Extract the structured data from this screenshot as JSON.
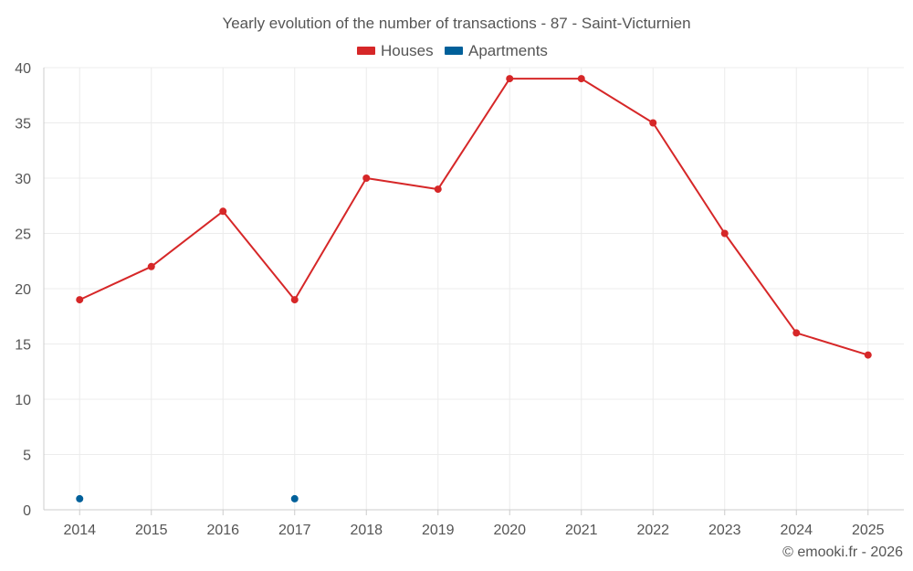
{
  "chart_data": {
    "type": "line",
    "title": "Yearly evolution of the number of transactions - 87 - Saint-Victurnien",
    "categories": [
      "2014",
      "2015",
      "2016",
      "2017",
      "2018",
      "2019",
      "2020",
      "2021",
      "2022",
      "2023",
      "2024",
      "2025"
    ],
    "series": [
      {
        "name": "Houses",
        "color": "#d62728",
        "values": [
          19,
          22,
          27,
          19,
          30,
          29,
          39,
          39,
          35,
          25,
          16,
          14
        ]
      },
      {
        "name": "Apartments",
        "color": "#00609a",
        "values": [
          1,
          null,
          null,
          1,
          null,
          null,
          null,
          null,
          null,
          null,
          null,
          null
        ]
      }
    ],
    "ylim": [
      0,
      40
    ],
    "yticks": [
      0,
      5,
      10,
      15,
      20,
      25,
      30,
      35,
      40
    ],
    "xlabel": "",
    "ylabel": "",
    "legend_position": "top-center",
    "grid": true
  },
  "footer": "© emooki.fr - 2026"
}
